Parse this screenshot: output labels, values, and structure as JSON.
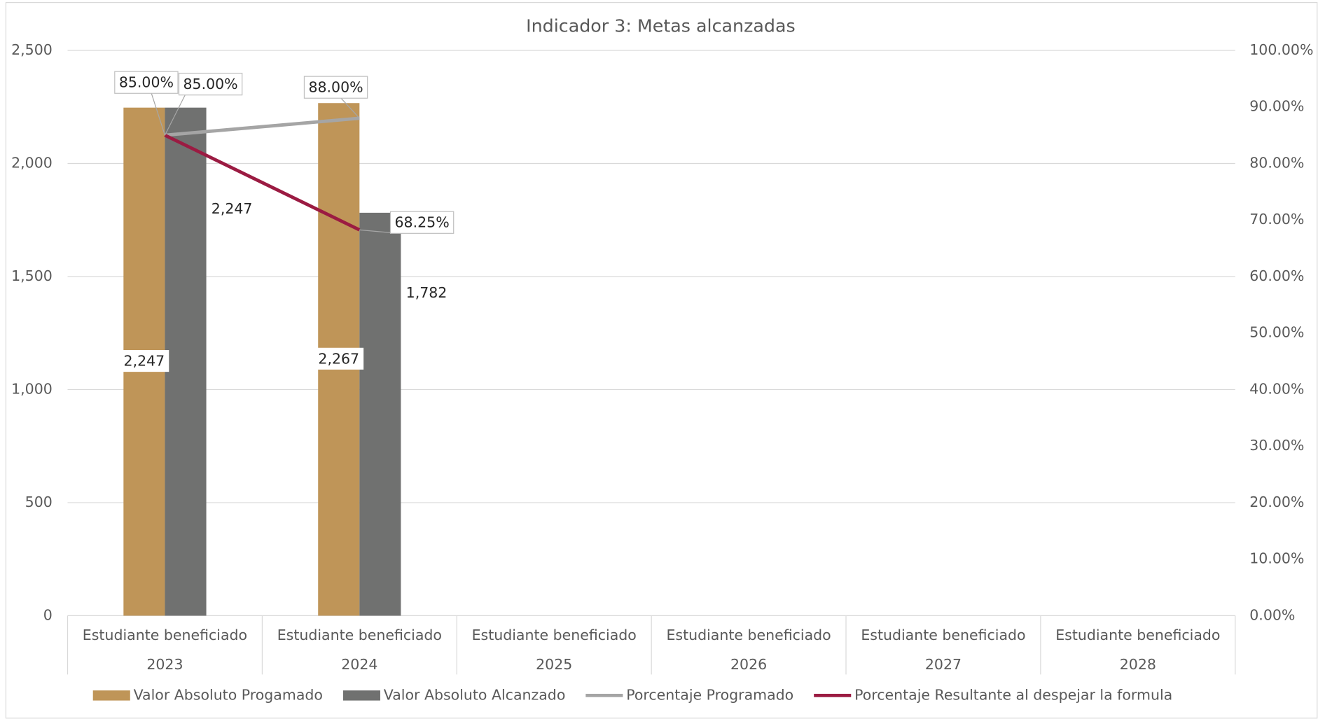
{
  "chart_data": {
    "type": "bar_line",
    "title": "Indicador 3: Metas alcanzadas",
    "categories": [
      [
        "Estudiante beneficiado",
        "2023"
      ],
      [
        "Estudiante beneficiado",
        "2024"
      ],
      [
        "Estudiante beneficiado",
        "2025"
      ],
      [
        "Estudiante beneficiado",
        "2026"
      ],
      [
        "Estudiante beneficiado",
        "2027"
      ],
      [
        "Estudiante beneficiado",
        "2028"
      ]
    ],
    "series": [
      {
        "name": "Valor Absoluto Progamado",
        "type": "bar",
        "color": "#bf9558",
        "values": [
          2247,
          2267,
          null,
          null,
          null,
          null
        ],
        "value_labels": [
          "2,247",
          "2,267",
          null,
          null,
          null,
          null
        ]
      },
      {
        "name": "Valor Absoluto Alcanzado",
        "type": "bar",
        "color": "#707170",
        "values": [
          2247,
          1782,
          null,
          null,
          null,
          null
        ],
        "value_labels": [
          "2,247",
          "1,782",
          null,
          null,
          null,
          null
        ]
      },
      {
        "name": "Porcentaje Programado",
        "type": "line",
        "axis": "y2",
        "color": "#a5a5a5",
        "values": [
          85,
          88,
          null,
          null,
          null,
          null
        ],
        "value_labels": [
          "85.00%",
          "88.00%",
          null,
          null,
          null,
          null
        ]
      },
      {
        "name": "Porcentaje Resultante al despejar la formula",
        "type": "line",
        "axis": "y2",
        "color": "#9b1b42",
        "values": [
          85,
          68.25,
          null,
          null,
          null,
          null
        ],
        "value_labels": [
          "85.00%",
          "68.25%",
          null,
          null,
          null,
          null
        ]
      }
    ],
    "ylim": [
      0,
      2500
    ],
    "yticks": [
      0,
      500,
      {
        "value": 1000,
        "label": "1,000"
      },
      {
        "value": 1500,
        "label": "1,500"
      },
      {
        "value": 2000,
        "label": "2,000"
      },
      {
        "value": 2500,
        "label": "2,500"
      }
    ],
    "y2lim": [
      0,
      100
    ],
    "y2ticks": [
      {
        "value": 0,
        "label": "0.00%"
      },
      {
        "value": 10,
        "label": "10.00%"
      },
      {
        "value": 20,
        "label": "20.00%"
      },
      {
        "value": 30,
        "label": "30.00%"
      },
      {
        "value": 40,
        "label": "40.00%"
      },
      {
        "value": 50,
        "label": "50.00%"
      },
      {
        "value": 60,
        "label": "60.00%"
      },
      {
        "value": 70,
        "label": "70.00%"
      },
      {
        "value": 80,
        "label": "80.00%"
      },
      {
        "value": 90,
        "label": "90.00%"
      },
      {
        "value": 100,
        "label": "100.00%"
      }
    ],
    "grid": true,
    "legend": "bottom"
  }
}
